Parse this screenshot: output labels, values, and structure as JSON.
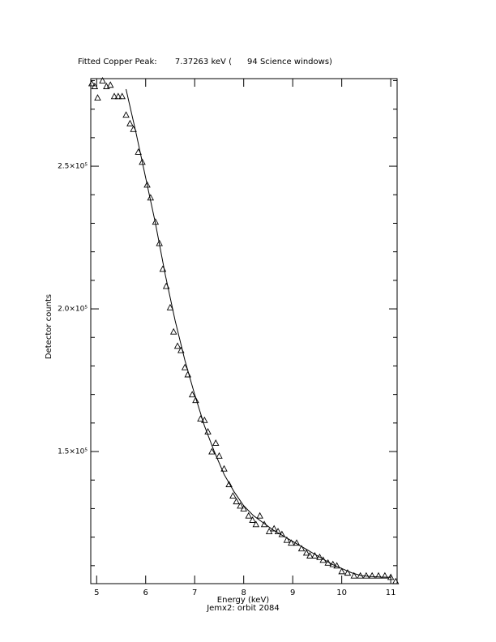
{
  "chart_data": {
    "type": "scatter",
    "title": "Fitted Copper Peak:       7.37263 keV (      94 Science windows)",
    "x_label": "Energy (keV)",
    "subtitle": "Jemx2: orbit 2084",
    "y_label": "Detector counts",
    "xlim": [
      4.88,
      11.13
    ],
    "ylim": [
      103700,
      280700
    ],
    "xticks": [
      5,
      6,
      7,
      8,
      9,
      10,
      11
    ],
    "yticks": [
      {
        "value": 150000,
        "label": "1.5×10⁵"
      },
      {
        "value": 200000,
        "label": "2.0×10⁵"
      },
      {
        "value": 250000,
        "label": "2.5×10⁵"
      }
    ],
    "yminorticks": [
      110000,
      120000,
      130000,
      140000,
      160000,
      170000,
      180000,
      190000,
      210000,
      220000,
      230000,
      240000,
      260000,
      270000,
      280000
    ],
    "color": "#000000",
    "series": [
      {
        "style": "markers",
        "x": [
          4.9,
          4.96,
          5.02,
          5.12,
          5.2,
          5.28,
          5.36,
          5.44,
          5.52,
          5.6,
          5.68,
          5.75,
          5.85,
          5.93,
          6.03,
          6.1,
          6.2,
          6.28,
          6.35,
          6.42,
          6.5,
          6.57,
          6.65,
          6.72,
          6.8,
          6.86,
          6.95,
          7.02,
          7.12,
          7.2,
          7.27,
          7.35,
          7.43,
          7.5,
          7.6,
          7.7,
          7.78,
          7.85,
          7.93,
          8.0,
          8.1,
          8.18,
          8.25,
          8.33,
          8.42,
          8.52,
          8.62,
          8.7,
          8.78,
          8.88,
          8.97,
          9.08,
          9.18,
          9.28,
          9.35,
          9.45,
          9.55,
          9.62,
          9.72,
          9.82,
          9.9,
          10.0,
          10.12,
          10.25,
          10.38,
          10.5,
          10.62,
          10.75,
          10.88,
          11.0,
          11.1
        ],
        "values": [
          279000,
          278000,
          274000,
          280000,
          278000,
          278500,
          274500,
          274500,
          274500,
          268000,
          265000,
          263000,
          255000,
          251500,
          243500,
          239000,
          230500,
          223000,
          214000,
          208000,
          200500,
          192000,
          187000,
          185500,
          179500,
          177000,
          170000,
          168000,
          161500,
          161000,
          157000,
          150000,
          153000,
          148500,
          144000,
          138500,
          134500,
          132500,
          131000,
          130000,
          127500,
          126000,
          124500,
          127500,
          124500,
          122000,
          123000,
          122000,
          121000,
          119000,
          118000,
          118000,
          116000,
          114500,
          113500,
          113500,
          113000,
          112000,
          111000,
          110500,
          110000,
          108000,
          107500,
          106500,
          106500,
          106500,
          106500,
          106500,
          106500,
          106000,
          104500
        ]
      },
      {
        "style": "line",
        "x": [
          5.6,
          5.8,
          6.0,
          6.2,
          6.4,
          6.6,
          6.8,
          7.0,
          7.2,
          7.4,
          7.6,
          7.8,
          8.0,
          8.2,
          8.4,
          8.6,
          8.8,
          9.0,
          9.2,
          9.4,
          9.6,
          9.8,
          10.0,
          10.2,
          10.4,
          10.6,
          10.8,
          11.0
        ],
        "values": [
          277000,
          262000,
          246000,
          230000,
          212000,
          196000,
          182000,
          170000,
          159000,
          150000,
          142000,
          136000,
          131000,
          127500,
          125000,
          122500,
          120500,
          118500,
          116500,
          114500,
          112500,
          110500,
          109000,
          107500,
          106500,
          106200,
          106000,
          105900
        ]
      }
    ]
  }
}
